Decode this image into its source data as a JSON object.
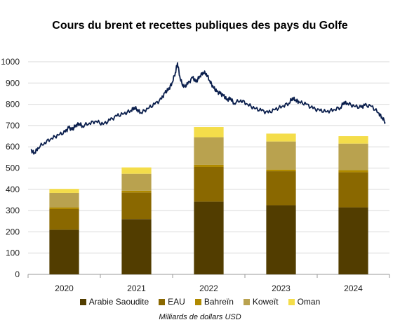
{
  "title": "Cours du brent et recettes publiques des pays du Golfe",
  "caption": "Milliards de dollars USD",
  "colors": {
    "line": "#0b1f4d",
    "grid": "#d9d9d9",
    "axis": "#999999"
  },
  "chart_data": {
    "type": "bar",
    "stacked": true,
    "categories": [
      "2020",
      "2021",
      "2022",
      "2023",
      "2024"
    ],
    "series": [
      {
        "name": "Arabie Saoudite",
        "color": "#523d00",
        "values": [
          210,
          260,
          342,
          325,
          315
        ]
      },
      {
        "name": "EAU",
        "color": "#8a6800",
        "values": [
          97,
          125,
          163,
          160,
          165
        ]
      },
      {
        "name": "Bahreïn",
        "color": "#b08a00",
        "values": [
          8,
          8,
          10,
          8,
          10
        ]
      },
      {
        "name": "Koweït",
        "color": "#b9a24f",
        "values": [
          68,
          80,
          130,
          132,
          125
        ]
      },
      {
        "name": "Oman",
        "color": "#f4dd4a",
        "values": [
          19,
          30,
          48,
          37,
          35
        ]
      }
    ],
    "line_series": {
      "name": "Cours du brent",
      "x_range": [
        2019.5,
        2024.65
      ],
      "points": [
        [
          2019.5,
          585
        ],
        [
          2019.55,
          570
        ],
        [
          2019.6,
          595
        ],
        [
          2019.7,
          620
        ],
        [
          2019.8,
          640
        ],
        [
          2019.9,
          655
        ],
        [
          2020.0,
          670
        ],
        [
          2020.05,
          690
        ],
        [
          2020.1,
          680
        ],
        [
          2020.15,
          700
        ],
        [
          2020.2,
          710
        ],
        [
          2020.25,
          698
        ],
        [
          2020.35,
          712
        ],
        [
          2020.45,
          720
        ],
        [
          2020.55,
          705
        ],
        [
          2020.65,
          725
        ],
        [
          2020.75,
          745
        ],
        [
          2020.85,
          755
        ],
        [
          2020.95,
          770
        ],
        [
          2021.0,
          785
        ],
        [
          2021.05,
          775
        ],
        [
          2021.1,
          760
        ],
        [
          2021.2,
          780
        ],
        [
          2021.3,
          800
        ],
        [
          2021.4,
          825
        ],
        [
          2021.45,
          855
        ],
        [
          2021.5,
          870
        ],
        [
          2021.55,
          900
        ],
        [
          2021.6,
          950
        ],
        [
          2021.63,
          995
        ],
        [
          2021.67,
          920
        ],
        [
          2021.72,
          880
        ],
        [
          2021.78,
          895
        ],
        [
          2021.85,
          925
        ],
        [
          2021.9,
          905
        ],
        [
          2021.95,
          930
        ],
        [
          2022.0,
          950
        ],
        [
          2022.05,
          945
        ],
        [
          2022.1,
          910
        ],
        [
          2022.15,
          880
        ],
        [
          2022.2,
          860
        ],
        [
          2022.25,
          850
        ],
        [
          2022.3,
          840
        ],
        [
          2022.35,
          820
        ],
        [
          2022.4,
          830
        ],
        [
          2022.45,
          805
        ],
        [
          2022.55,
          820
        ],
        [
          2022.65,
          800
        ],
        [
          2022.75,
          780
        ],
        [
          2022.85,
          770
        ],
        [
          2022.95,
          760
        ],
        [
          2023.05,
          775
        ],
        [
          2023.15,
          790
        ],
        [
          2023.25,
          805
        ],
        [
          2023.3,
          830
        ],
        [
          2023.35,
          820
        ],
        [
          2023.4,
          810
        ],
        [
          2023.5,
          800
        ],
        [
          2023.6,
          780
        ],
        [
          2023.7,
          770
        ],
        [
          2023.8,
          765
        ],
        [
          2023.9,
          775
        ],
        [
          2024.0,
          785
        ],
        [
          2024.05,
          810
        ],
        [
          2024.1,
          805
        ],
        [
          2024.2,
          790
        ],
        [
          2024.3,
          785
        ],
        [
          2024.35,
          795
        ],
        [
          2024.45,
          790
        ],
        [
          2024.55,
          760
        ],
        [
          2024.6,
          740
        ],
        [
          2024.65,
          715
        ]
      ]
    },
    "ylim": [
      0,
      1000
    ],
    "yticks": [
      0,
      100,
      200,
      300,
      400,
      500,
      600,
      700,
      800,
      900,
      1000
    ],
    "grid": true,
    "legend_position": "bottom"
  }
}
